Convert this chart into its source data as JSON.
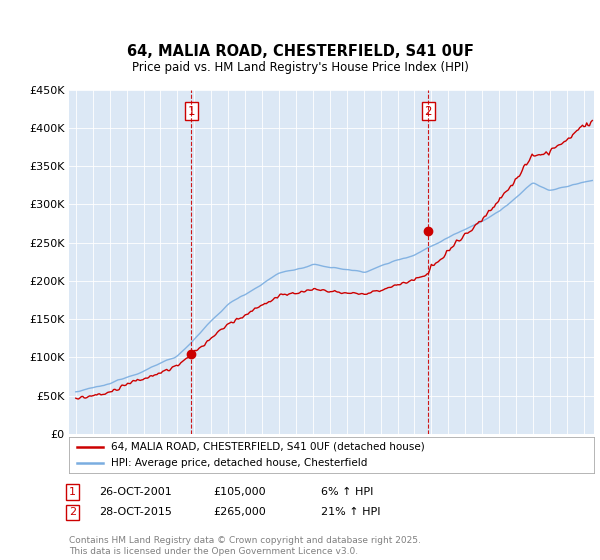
{
  "title1": "64, MALIA ROAD, CHESTERFIELD, S41 0UF",
  "title2": "Price paid vs. HM Land Registry's House Price Index (HPI)",
  "ylim": [
    0,
    450000
  ],
  "yticks": [
    0,
    50000,
    100000,
    150000,
    200000,
    250000,
    300000,
    350000,
    400000,
    450000
  ],
  "ytick_labels": [
    "£0",
    "£50K",
    "£100K",
    "£150K",
    "£200K",
    "£250K",
    "£300K",
    "£350K",
    "£400K",
    "£450K"
  ],
  "hpi_color": "#7aade0",
  "price_color": "#cc0000",
  "vline_color": "#cc0000",
  "purchase1_date": 2001.82,
  "purchase1_price": 105000,
  "purchase2_date": 2015.82,
  "purchase2_price": 265000,
  "legend_line1": "64, MALIA ROAD, CHESTERFIELD, S41 0UF (detached house)",
  "legend_line2": "HPI: Average price, detached house, Chesterfield",
  "footer": "Contains HM Land Registry data © Crown copyright and database right 2025.\nThis data is licensed under the Open Government Licence v3.0.",
  "background_color": "#ffffff",
  "plot_bg_color": "#dce8f5"
}
